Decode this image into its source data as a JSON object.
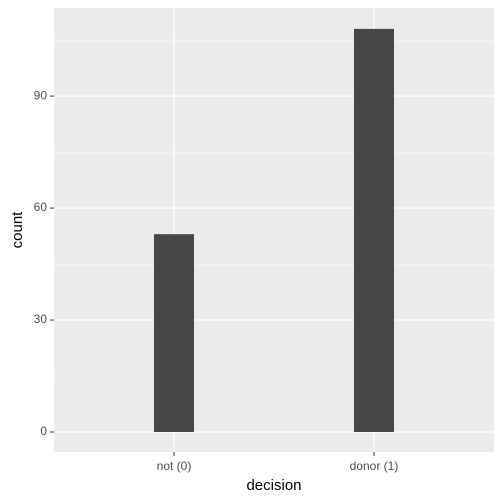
{
  "chart_data": {
    "type": "bar",
    "categories": [
      "not (0)",
      "donor (1)"
    ],
    "values": [
      53,
      108
    ],
    "color": "#474747",
    "xlabel": "decision",
    "ylabel": "count",
    "ylim": [
      -5.36,
      113.6
    ],
    "yticks": [
      0,
      30,
      60,
      90
    ],
    "yminorticks": [
      15,
      45,
      75,
      105
    ],
    "grid": true
  }
}
